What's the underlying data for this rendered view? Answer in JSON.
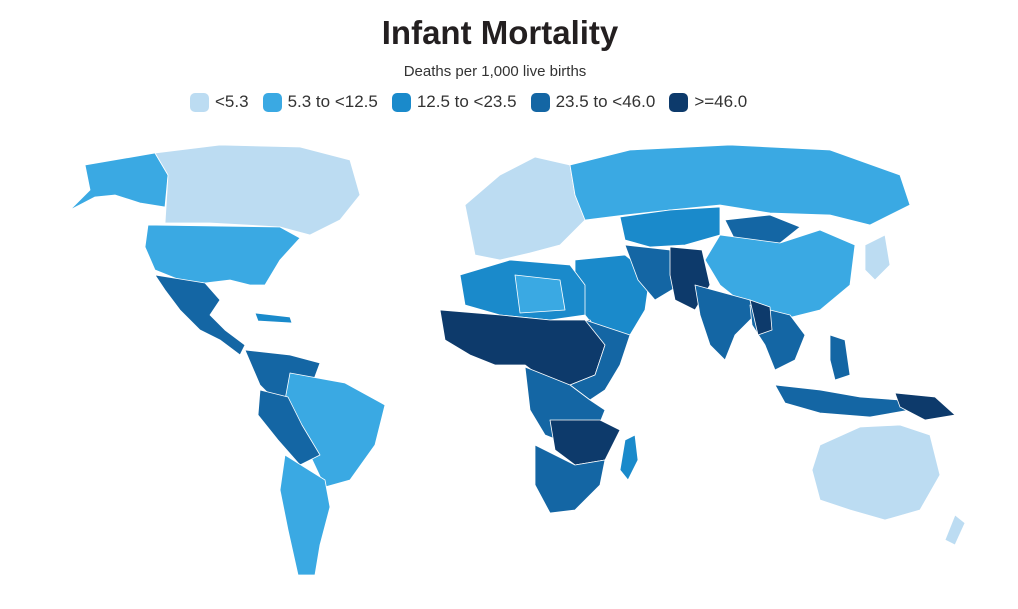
{
  "title": "Infant Mortality",
  "subtitle": "Deaths per 1,000 live births",
  "legend": [
    {
      "label": "<5.3",
      "color": "#bcdcf2"
    },
    {
      "label": "5.3 to <12.5",
      "color": "#3aa9e3"
    },
    {
      "label": "12.5 to <23.5",
      "color": "#1a8acb"
    },
    {
      "label": "23.5 to <46.0",
      "color": "#1466a4"
    },
    {
      "label": ">=46.0",
      "color": "#0d3a6b"
    }
  ]
}
